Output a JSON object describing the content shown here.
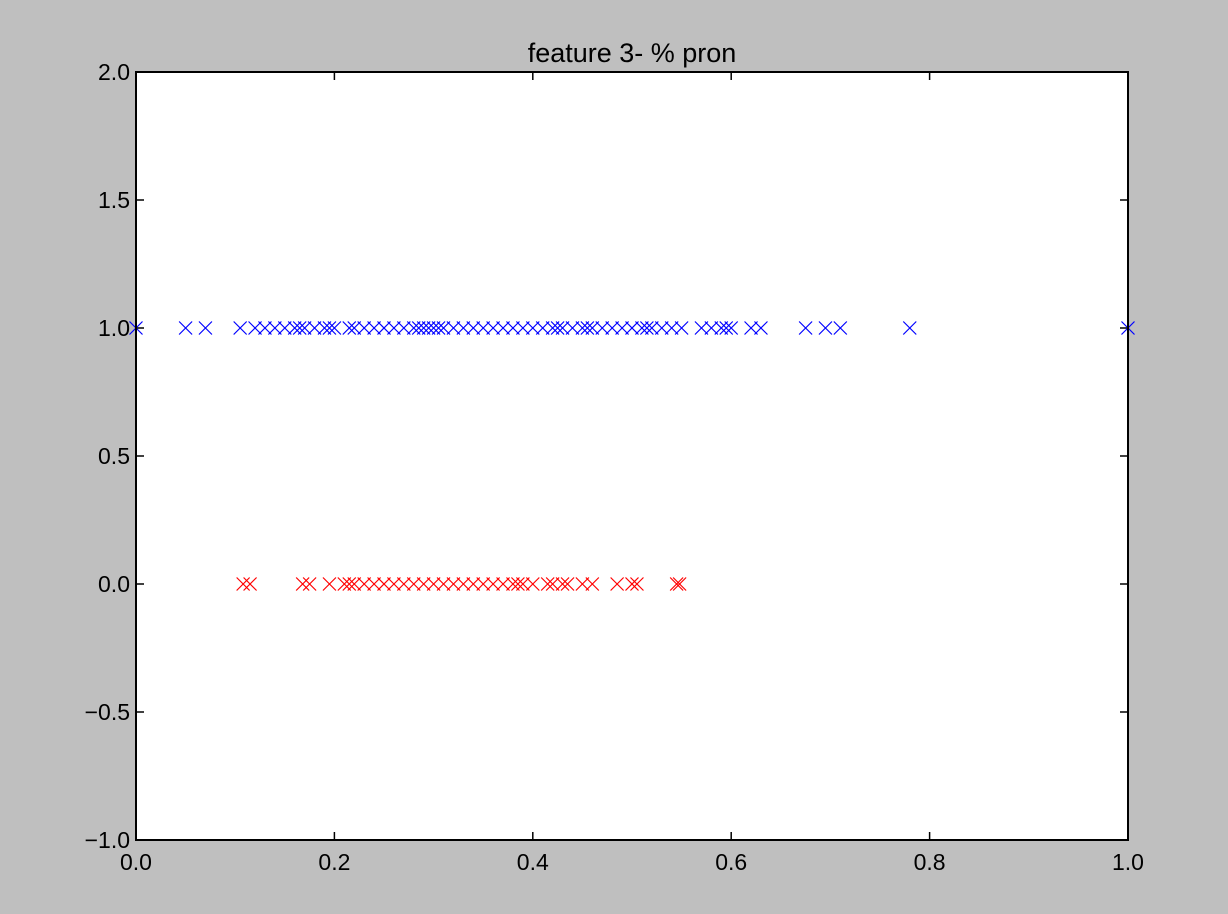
{
  "chart_data": {
    "type": "scatter",
    "title": "feature 3- % pron",
    "xlabel": "",
    "ylabel": "",
    "xlim": [
      0.0,
      1.0
    ],
    "ylim": [
      -1.0,
      2.0
    ],
    "x_ticks": [
      "0.0",
      "0.2",
      "0.4",
      "0.6",
      "0.8",
      "1.0"
    ],
    "y_ticks": [
      "−1.0",
      "−0.5",
      "0.0",
      "0.5",
      "1.0",
      "1.5",
      "2.0"
    ],
    "x_tick_values": [
      0.0,
      0.2,
      0.4,
      0.6,
      0.8,
      1.0
    ],
    "y_tick_values": [
      -1.0,
      -0.5,
      0.0,
      0.5,
      1.0,
      1.5,
      2.0
    ],
    "grid": false,
    "marker": "x",
    "series": [
      {
        "color": "#0000ff",
        "y": 1.0,
        "x": [
          0.0,
          0.05,
          0.07,
          0.105,
          0.12,
          0.13,
          0.14,
          0.15,
          0.16,
          0.165,
          0.17,
          0.18,
          0.19,
          0.195,
          0.2,
          0.215,
          0.22,
          0.23,
          0.24,
          0.25,
          0.26,
          0.27,
          0.28,
          0.285,
          0.29,
          0.295,
          0.3,
          0.305,
          0.31,
          0.32,
          0.33,
          0.34,
          0.35,
          0.36,
          0.37,
          0.38,
          0.39,
          0.4,
          0.41,
          0.42,
          0.425,
          0.43,
          0.44,
          0.45,
          0.455,
          0.46,
          0.47,
          0.48,
          0.49,
          0.5,
          0.51,
          0.515,
          0.52,
          0.53,
          0.54,
          0.55,
          0.57,
          0.58,
          0.59,
          0.595,
          0.6,
          0.62,
          0.63,
          0.675,
          0.695,
          0.71,
          0.78,
          1.0
        ]
      },
      {
        "color": "#ff0000",
        "y": 0.0,
        "x": [
          0.108,
          0.115,
          0.168,
          0.175,
          0.195,
          0.21,
          0.215,
          0.22,
          0.23,
          0.24,
          0.25,
          0.26,
          0.27,
          0.28,
          0.29,
          0.3,
          0.31,
          0.32,
          0.33,
          0.34,
          0.35,
          0.36,
          0.37,
          0.38,
          0.385,
          0.39,
          0.4,
          0.415,
          0.42,
          0.43,
          0.435,
          0.45,
          0.46,
          0.485,
          0.5,
          0.505,
          0.545,
          0.548
        ]
      }
    ]
  }
}
